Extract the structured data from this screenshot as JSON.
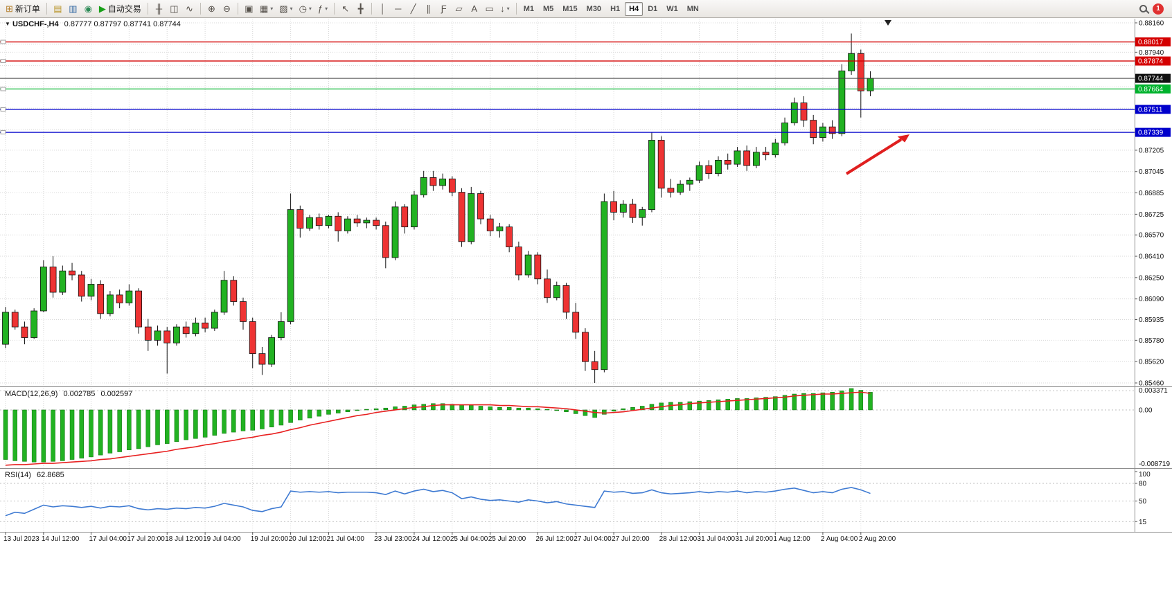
{
  "toolbar": {
    "items": [
      {
        "name": "new-order-button",
        "glyph": "⊞",
        "glyph_color": "#b5802f",
        "label": "新订单"
      },
      {
        "sep": true
      },
      {
        "name": "market-watch-button",
        "glyph": "▤",
        "glyph_color": "#b9962c"
      },
      {
        "name": "data-window-button",
        "glyph": "▥",
        "glyph_color": "#3a6ea5"
      },
      {
        "name": "navigator-button",
        "glyph": "◉",
        "glyph_color": "#2e8b57"
      },
      {
        "name": "auto-trading-button",
        "glyph": "▶",
        "glyph_color": "#18a018",
        "label": "自动交易"
      },
      {
        "sep": true
      },
      {
        "name": "bar-chart-button",
        "glyph": "╫"
      },
      {
        "name": "candlestick-chart-button",
        "glyph": "◫"
      },
      {
        "name": "line-chart-button",
        "glyph": "∿"
      },
      {
        "sep": true
      },
      {
        "name": "zoom-in-button",
        "glyph": "⊕"
      },
      {
        "name": "zoom-out-button",
        "glyph": "⊖"
      },
      {
        "sep": true
      },
      {
        "name": "tile-windows-button",
        "glyph": "▣"
      },
      {
        "name": "new-chart-button",
        "glyph": "▦",
        "dropdown": true
      },
      {
        "name": "profiles-button",
        "glyph": "▧",
        "dropdown": true
      },
      {
        "name": "periods-button",
        "glyph": "◷",
        "dropdown": true
      },
      {
        "name": "indicators-button",
        "glyph": "ƒ",
        "dropdown": true
      },
      {
        "sep": true
      },
      {
        "name": "cursor-button",
        "glyph": "↖"
      },
      {
        "name": "crosshair-button",
        "glyph": "╋"
      },
      {
        "sep": true
      },
      {
        "name": "vertical-line-button",
        "glyph": "│"
      },
      {
        "name": "horizontal-line-button",
        "glyph": "─"
      },
      {
        "name": "trendline-button",
        "glyph": "╱"
      },
      {
        "name": "channel-button",
        "glyph": "∥"
      },
      {
        "name": "fibonacci-button",
        "glyph": "Ƒ"
      },
      {
        "name": "shapes-button",
        "glyph": "▱"
      },
      {
        "name": "text-button",
        "glyph": "A"
      },
      {
        "name": "text-label-button",
        "glyph": "▭"
      },
      {
        "name": "arrows-button",
        "glyph": "↓",
        "dropdown": true
      },
      {
        "sep": true
      }
    ],
    "timeframes": [
      "M1",
      "M5",
      "M15",
      "M30",
      "H1",
      "H4",
      "D1",
      "W1",
      "MN"
    ],
    "active_timeframe": "H4",
    "notification_count": "1"
  },
  "chart": {
    "title": "USDCHF-,H4",
    "ohlc": "0.87777 0.87797 0.87741 0.87744",
    "price_axis": [
      "0.88160",
      "0.87940",
      "0.87205",
      "0.87045",
      "0.86885",
      "0.86725",
      "0.86570",
      "0.86410",
      "0.86250",
      "0.86090",
      "0.85935",
      "0.85780",
      "0.85620",
      "0.85460"
    ],
    "hlines": [
      {
        "label": "0.88017",
        "color": "#d40000"
      },
      {
        "label": "0.87874",
        "color": "#d40000"
      },
      {
        "label": "0.87744",
        "color": "#111111",
        "current": true
      },
      {
        "label": "0.87664",
        "color": "#00b22d"
      },
      {
        "label": "0.87511",
        "color": "#0000cc"
      },
      {
        "label": "0.87339",
        "color": "#0000cc"
      }
    ],
    "time_labels": [
      [
        "13 Jul 2023",
        0
      ],
      [
        "14 Jul 12:00",
        4
      ],
      [
        "17 Jul 04:00",
        9
      ],
      [
        "17 Jul 20:00",
        13
      ],
      [
        "18 Jul 12:00",
        17
      ],
      [
        "19 Jul 04:00",
        21
      ],
      [
        "19 Jul 20:00",
        26
      ],
      [
        "20 Jul 12:00",
        30
      ],
      [
        "21 Jul 04:00",
        34
      ],
      [
        "23 Jul 23:00",
        39
      ],
      [
        "24 Jul 12:00",
        43
      ],
      [
        "25 Jul 04:00",
        47
      ],
      [
        "25 Jul 20:00",
        51
      ],
      [
        "26 Jul 12:00",
        56
      ],
      [
        "27 Jul 04:00",
        60
      ],
      [
        "27 Jul 20:00",
        64
      ],
      [
        "28 Jul 12:00",
        69
      ],
      [
        "31 Jul 04:00",
        73
      ],
      [
        "31 Jul 20:00",
        77
      ],
      [
        "1 Aug 12:00",
        81
      ],
      [
        "2 Aug 04:00",
        86
      ],
      [
        "2 Aug 20:00",
        90
      ]
    ],
    "candles": [
      [
        0.8575,
        0.8603,
        0.8572,
        0.8599
      ],
      [
        0.8599,
        0.8601,
        0.8586,
        0.8588
      ],
      [
        0.8588,
        0.8592,
        0.8575,
        0.858
      ],
      [
        0.858,
        0.8602,
        0.8579,
        0.86
      ],
      [
        0.86,
        0.8638,
        0.8599,
        0.8633
      ],
      [
        0.8633,
        0.8641,
        0.861,
        0.8614
      ],
      [
        0.8614,
        0.8634,
        0.8612,
        0.863
      ],
      [
        0.863,
        0.8636,
        0.8623,
        0.8627
      ],
      [
        0.8627,
        0.863,
        0.8607,
        0.8611
      ],
      [
        0.8611,
        0.8624,
        0.8608,
        0.862
      ],
      [
        0.862,
        0.8623,
        0.8594,
        0.8598
      ],
      [
        0.8598,
        0.8615,
        0.8596,
        0.8612
      ],
      [
        0.8612,
        0.8616,
        0.8602,
        0.8606
      ],
      [
        0.8606,
        0.862,
        0.8604,
        0.8615
      ],
      [
        0.8615,
        0.8617,
        0.8583,
        0.8588
      ],
      [
        0.8588,
        0.8594,
        0.857,
        0.8578
      ],
      [
        0.8578,
        0.8589,
        0.8574,
        0.8585
      ],
      [
        0.8585,
        0.8588,
        0.8553,
        0.8576
      ],
      [
        0.8576,
        0.859,
        0.8574,
        0.8588
      ],
      [
        0.8588,
        0.8592,
        0.858,
        0.8583
      ],
      [
        0.8583,
        0.8595,
        0.8581,
        0.8591
      ],
      [
        0.8591,
        0.8595,
        0.8584,
        0.8587
      ],
      [
        0.8587,
        0.8601,
        0.8585,
        0.8599
      ],
      [
        0.8599,
        0.863,
        0.8597,
        0.8623
      ],
      [
        0.8623,
        0.8626,
        0.8604,
        0.8607
      ],
      [
        0.8607,
        0.861,
        0.8586,
        0.8592
      ],
      [
        0.8592,
        0.8595,
        0.8557,
        0.8568
      ],
      [
        0.8568,
        0.8573,
        0.8552,
        0.856
      ],
      [
        0.856,
        0.8582,
        0.8558,
        0.858
      ],
      [
        0.858,
        0.8599,
        0.8578,
        0.8592
      ],
      [
        0.8592,
        0.8688,
        0.859,
        0.8676
      ],
      [
        0.8676,
        0.8679,
        0.8655,
        0.8662
      ],
      [
        0.8662,
        0.8672,
        0.866,
        0.867
      ],
      [
        0.867,
        0.8673,
        0.8661,
        0.8664
      ],
      [
        0.8664,
        0.8672,
        0.8662,
        0.8671
      ],
      [
        0.8671,
        0.8674,
        0.8652,
        0.866
      ],
      [
        0.866,
        0.8671,
        0.8658,
        0.8669
      ],
      [
        0.8669,
        0.8672,
        0.8663,
        0.8666
      ],
      [
        0.8666,
        0.867,
        0.8662,
        0.8668
      ],
      [
        0.8668,
        0.867,
        0.8661,
        0.8664
      ],
      [
        0.8664,
        0.8667,
        0.8632,
        0.864
      ],
      [
        0.864,
        0.8682,
        0.8638,
        0.8678
      ],
      [
        0.8678,
        0.868,
        0.8658,
        0.8663
      ],
      [
        0.8663,
        0.869,
        0.8661,
        0.8687
      ],
      [
        0.8687,
        0.8705,
        0.8685,
        0.87
      ],
      [
        0.87,
        0.8705,
        0.869,
        0.8694
      ],
      [
        0.8694,
        0.8703,
        0.8691,
        0.8699
      ],
      [
        0.8699,
        0.8701,
        0.8686,
        0.8689
      ],
      [
        0.8689,
        0.8692,
        0.8648,
        0.8652
      ],
      [
        0.8652,
        0.8693,
        0.865,
        0.8688
      ],
      [
        0.8688,
        0.869,
        0.8665,
        0.8669
      ],
      [
        0.8669,
        0.8672,
        0.8656,
        0.866
      ],
      [
        0.866,
        0.8666,
        0.8655,
        0.8663
      ],
      [
        0.8663,
        0.8665,
        0.8644,
        0.8648
      ],
      [
        0.8648,
        0.8652,
        0.8623,
        0.8627
      ],
      [
        0.8627,
        0.8645,
        0.8625,
        0.8642
      ],
      [
        0.8642,
        0.8644,
        0.862,
        0.8624
      ],
      [
        0.8624,
        0.8631,
        0.8606,
        0.861
      ],
      [
        0.861,
        0.8622,
        0.8608,
        0.8619
      ],
      [
        0.8619,
        0.8621,
        0.8594,
        0.8599
      ],
      [
        0.8599,
        0.8606,
        0.8579,
        0.8584
      ],
      [
        0.8584,
        0.8587,
        0.8555,
        0.8562
      ],
      [
        0.8562,
        0.857,
        0.8546,
        0.8556
      ],
      [
        0.8556,
        0.8688,
        0.8554,
        0.8682
      ],
      [
        0.8682,
        0.869,
        0.8668,
        0.8674
      ],
      [
        0.8674,
        0.8683,
        0.867,
        0.868
      ],
      [
        0.868,
        0.8684,
        0.8666,
        0.867
      ],
      [
        0.867,
        0.8678,
        0.8664,
        0.8676
      ],
      [
        0.8676,
        0.8734,
        0.8674,
        0.8728
      ],
      [
        0.8728,
        0.8731,
        0.8685,
        0.8692
      ],
      [
        0.8692,
        0.8699,
        0.8685,
        0.8689
      ],
      [
        0.8689,
        0.8698,
        0.8687,
        0.8695
      ],
      [
        0.8695,
        0.87,
        0.869,
        0.8698
      ],
      [
        0.8698,
        0.8712,
        0.8696,
        0.8709
      ],
      [
        0.8709,
        0.8713,
        0.8699,
        0.8703
      ],
      [
        0.8703,
        0.8716,
        0.8701,
        0.8713
      ],
      [
        0.8713,
        0.8718,
        0.8706,
        0.871
      ],
      [
        0.871,
        0.8723,
        0.8708,
        0.872
      ],
      [
        0.872,
        0.8724,
        0.8705,
        0.8709
      ],
      [
        0.8709,
        0.8723,
        0.8707,
        0.8719
      ],
      [
        0.8719,
        0.8723,
        0.8713,
        0.8717
      ],
      [
        0.8717,
        0.8729,
        0.8715,
        0.8726
      ],
      [
        0.8726,
        0.8745,
        0.8724,
        0.8741
      ],
      [
        0.8741,
        0.876,
        0.8739,
        0.8756
      ],
      [
        0.8756,
        0.8761,
        0.8738,
        0.8743
      ],
      [
        0.8743,
        0.8747,
        0.8725,
        0.873
      ],
      [
        0.873,
        0.8741,
        0.8727,
        0.8738
      ],
      [
        0.8738,
        0.8743,
        0.8729,
        0.8733
      ],
      [
        0.8733,
        0.8785,
        0.8731,
        0.878
      ],
      [
        0.878,
        0.8808,
        0.8777,
        0.8793
      ],
      [
        0.8793,
        0.8796,
        0.8745,
        0.8765
      ],
      [
        0.8765,
        0.87797,
        0.8761,
        0.87744
      ]
    ]
  },
  "macd": {
    "name": "MACD(12,26,9)",
    "value_main": "0.002785",
    "value_signal": "0.002597",
    "scale": {
      "max": "0.003371",
      "zero": "0.00",
      "min": "-0.008719"
    },
    "histogram": [
      -0.0078,
      -0.008,
      -0.0081,
      -0.0082,
      -0.0082,
      -0.0081,
      -0.008,
      -0.0078,
      -0.0076,
      -0.0074,
      -0.0071,
      -0.0068,
      -0.0066,
      -0.0063,
      -0.0061,
      -0.0058,
      -0.0055,
      -0.0053,
      -0.005,
      -0.0047,
      -0.0045,
      -0.0043,
      -0.004,
      -0.0037,
      -0.0035,
      -0.0033,
      -0.0032,
      -0.003,
      -0.0027,
      -0.0024,
      -0.002,
      -0.0016,
      -0.0013,
      -0.001,
      -0.0007,
      -0.0005,
      -0.0003,
      -0.0001,
      0.0001,
      0.0002,
      0.0003,
      0.0005,
      0.0006,
      0.0008,
      0.0009,
      0.001,
      0.001,
      0.0009,
      0.0008,
      0.0007,
      0.0006,
      0.0005,
      0.0004,
      0.0004,
      0.0003,
      0.0003,
      0.0002,
      0.0001,
      -0.0001,
      -0.0003,
      -0.0006,
      -0.0009,
      -0.0012,
      -0.0007,
      -0.0002,
      0.0002,
      0.0004,
      0.0006,
      0.0009,
      0.0011,
      0.0012,
      0.0012,
      0.0013,
      0.0014,
      0.0015,
      0.0016,
      0.0017,
      0.0018,
      0.0018,
      0.0019,
      0.002,
      0.0021,
      0.0023,
      0.0025,
      0.0026,
      0.0026,
      0.0027,
      0.0028,
      0.003,
      0.003371,
      0.0031,
      0.002785
    ],
    "signal": [
      -0.0087,
      -0.0086,
      -0.0086,
      -0.0085,
      -0.0084,
      -0.0084,
      -0.0083,
      -0.0082,
      -0.0081,
      -0.008,
      -0.0078,
      -0.0077,
      -0.0075,
      -0.0073,
      -0.0071,
      -0.0069,
      -0.0067,
      -0.0065,
      -0.0062,
      -0.006,
      -0.0058,
      -0.0055,
      -0.0053,
      -0.005,
      -0.0048,
      -0.0045,
      -0.0043,
      -0.004,
      -0.0038,
      -0.0035,
      -0.0031,
      -0.0028,
      -0.0024,
      -0.0021,
      -0.0018,
      -0.0015,
      -0.0012,
      -0.0009,
      -0.0007,
      -0.0004,
      -0.0002,
      0.0,
      0.0002,
      0.0004,
      0.0005,
      0.0007,
      0.0008,
      0.0008,
      0.0008,
      0.0008,
      0.0008,
      0.0008,
      0.0007,
      0.0007,
      0.0006,
      0.0005,
      0.0005,
      0.0004,
      0.0003,
      0.0002,
      0.0,
      -0.0002,
      -0.0004,
      -0.0005,
      -0.0004,
      -0.0003,
      -0.0001,
      0.0001,
      0.0003,
      0.0005,
      0.0007,
      0.0008,
      0.001,
      0.0011,
      0.0012,
      0.0013,
      0.0014,
      0.0015,
      0.0016,
      0.0017,
      0.0018,
      0.0019,
      0.002,
      0.0022,
      0.0023,
      0.0024,
      0.0025,
      0.0025,
      0.0026,
      0.0027,
      0.0028,
      0.002597
    ]
  },
  "rsi": {
    "name": "RSI(14)",
    "value": "62.8685",
    "levels": [
      "100",
      "80",
      "50",
      "15"
    ],
    "values": [
      25,
      31,
      29,
      36,
      43,
      40,
      42,
      41,
      39,
      41,
      38,
      41,
      40,
      42,
      37,
      35,
      37,
      36,
      38,
      37,
      39,
      38,
      41,
      46,
      43,
      40,
      34,
      32,
      37,
      40,
      67,
      65,
      66,
      65,
      66,
      64,
      65,
      65,
      65,
      64,
      61,
      67,
      62,
      67,
      70,
      66,
      68,
      64,
      54,
      57,
      53,
      51,
      52,
      50,
      48,
      52,
      50,
      47,
      49,
      45,
      43,
      41,
      39,
      67,
      65,
      66,
      63,
      64,
      69,
      64,
      62,
      63,
      64,
      66,
      64,
      66,
      65,
      67,
      64,
      66,
      65,
      67,
      70,
      72,
      68,
      64,
      66,
      64,
      70,
      73,
      69,
      62.8685
    ]
  },
  "colors": {
    "up": "#22b222",
    "down": "#ee3333",
    "wick": "#111111",
    "macd_hist": "#22b222",
    "macd_signal": "#e82020",
    "rsi_line": "#3e7ad2",
    "grid": "#d8d8d8",
    "arrow": "#e01f1f",
    "badge": "#e03030",
    "current": "#444444"
  }
}
